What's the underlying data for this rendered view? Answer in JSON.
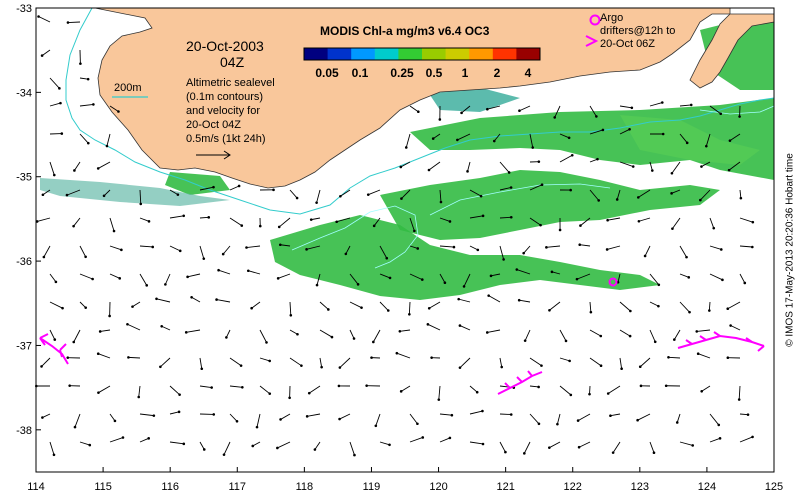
{
  "title": "MODIS Chl-a mg/m3 v6.4 OC3",
  "date": "20-Oct-2003",
  "time": "04Z",
  "contour_label": "200m",
  "description_lines": [
    "Altimetric sealevel",
    "(0.1m contours)",
    "and velocity for",
    "20-Oct 04Z",
    "0.5m/s (1kt 24h)"
  ],
  "argo_lines": [
    "Argo",
    "drifters@12h to",
    "20-Oct 06Z"
  ],
  "credit": "© IMOS 17-May-2013 20:20:36 Hobart time",
  "colorbar": {
    "labels": [
      "0.05",
      "0.1",
      "0.25",
      "0.5",
      "1",
      "2",
      "4"
    ],
    "colors": [
      "#000080",
      "#0033cc",
      "#0099ff",
      "#00cccc",
      "#33cc33",
      "#99cc00",
      "#cccc00",
      "#ff9900",
      "#ff3300",
      "#990000"
    ]
  },
  "axes": {
    "x_ticks": [
      "114",
      "115",
      "116",
      "117",
      "118",
      "119",
      "120",
      "121",
      "122",
      "123",
      "124",
      "125"
    ],
    "y_ticks": [
      "-33",
      "-34",
      "-35",
      "-36",
      "-37",
      "-38"
    ],
    "x_range": [
      114,
      125
    ],
    "y_range": [
      -38.5,
      -33
    ]
  },
  "colors": {
    "land": "#f9c79b",
    "contour": "#33cccc",
    "chl_main": "#33bb44",
    "chl_light": "#55cc55",
    "drifter": "#ff00ff"
  }
}
